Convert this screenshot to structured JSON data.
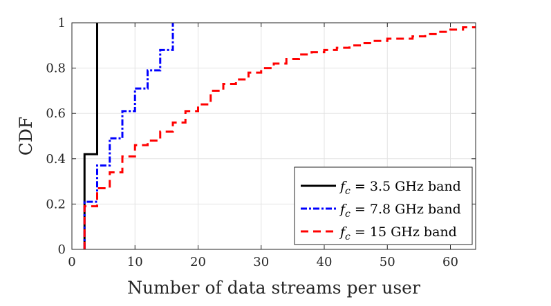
{
  "chart_data": {
    "type": "line",
    "step": true,
    "xlabel": "Number of data streams per user",
    "ylabel": "CDF",
    "xlim": [
      0,
      64
    ],
    "ylim": [
      0,
      1
    ],
    "xticks": [
      "0",
      "10",
      "20",
      "30",
      "40",
      "50",
      "60"
    ],
    "yticks": [
      "0",
      "0.2",
      "0.4",
      "0.6",
      "0.8",
      "1"
    ],
    "grid": true,
    "legend_position": "lower-right",
    "series": [
      {
        "name": "f_c = 3.5 GHz band",
        "legend_symbol": "f",
        "legend_subscript": "c",
        "legend_rest": " = 3.5 GHz band",
        "color": "#000000",
        "dash": "solid",
        "x": [
          2,
          2,
          4,
          4
        ],
        "y": [
          0,
          0.42,
          0.42,
          1.0
        ]
      },
      {
        "name": "f_c = 7.8 GHz band",
        "legend_symbol": "f",
        "legend_subscript": "c",
        "legend_rest": " = 7.8 GHz band",
        "color": "#0000ff",
        "dash": "dashdot",
        "x": [
          2,
          2,
          4,
          4,
          6,
          6,
          8,
          8,
          10,
          10,
          12,
          12,
          14,
          14,
          16,
          16
        ],
        "y": [
          0,
          0.21,
          0.21,
          0.37,
          0.37,
          0.49,
          0.49,
          0.61,
          0.61,
          0.71,
          0.71,
          0.79,
          0.79,
          0.88,
          0.88,
          1.0
        ]
      },
      {
        "name": "f_c = 15 GHz band",
        "legend_symbol": "f",
        "legend_subscript": "c",
        "legend_rest": " = 15 GHz band",
        "color": "#ff0000",
        "dash": "dashed",
        "x": [
          2,
          2,
          4,
          4,
          6,
          6,
          8,
          8,
          10,
          10,
          12,
          12,
          14,
          14,
          16,
          16,
          18,
          18,
          20,
          20,
          22,
          22,
          24,
          24,
          26,
          26,
          28,
          28,
          30,
          30,
          32,
          32,
          34,
          34,
          36,
          36,
          38,
          38,
          40,
          40,
          42,
          42,
          44,
          44,
          46,
          46,
          48,
          48,
          50,
          50,
          52,
          52,
          54,
          54,
          56,
          56,
          58,
          58,
          60,
          60,
          62,
          62,
          64
        ],
        "y": [
          0,
          0.19,
          0.19,
          0.27,
          0.27,
          0.34,
          0.34,
          0.41,
          0.41,
          0.46,
          0.46,
          0.48,
          0.48,
          0.52,
          0.52,
          0.56,
          0.56,
          0.61,
          0.61,
          0.64,
          0.64,
          0.7,
          0.7,
          0.73,
          0.73,
          0.75,
          0.75,
          0.78,
          0.78,
          0.8,
          0.8,
          0.82,
          0.82,
          0.84,
          0.84,
          0.86,
          0.86,
          0.87,
          0.87,
          0.88,
          0.88,
          0.89,
          0.89,
          0.9,
          0.9,
          0.91,
          0.91,
          0.92,
          0.92,
          0.93,
          0.93,
          0.93,
          0.93,
          0.94,
          0.94,
          0.95,
          0.95,
          0.96,
          0.96,
          0.97,
          0.97,
          0.98,
          0.98
        ]
      }
    ]
  }
}
